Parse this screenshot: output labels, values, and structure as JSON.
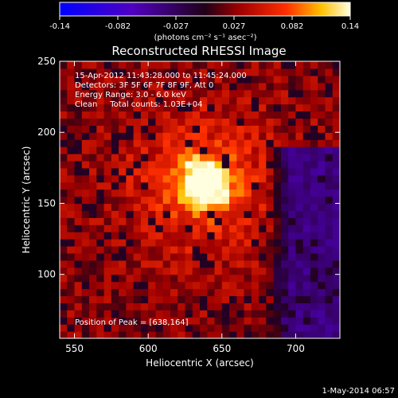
{
  "chart_data": {
    "type": "heatmap",
    "title": "Reconstructed RHESSI Image",
    "xlabel": "Heliocentric X (arcsec)",
    "ylabel": "Heliocentric Y (arcsec)",
    "xlim": [
      540,
      730
    ],
    "ylim": [
      55,
      250
    ],
    "xticks": [
      550,
      600,
      650,
      700
    ],
    "yticks": [
      100,
      150,
      200,
      250
    ],
    "grid": false,
    "colorbar": {
      "position": "top",
      "min": -0.14,
      "max": 0.14,
      "ticks": [
        "-0.14",
        "-0.082",
        "-0.027",
        "0.027",
        "0.082",
        "0.14"
      ],
      "unit_label": "(photons cm⁻² s⁻¹ asec⁻²)"
    },
    "annotations": [
      "15-Apr-2012 11:43:28.000 to 11:45:24.000",
      "Detectors: 3F 5F 6F 7F 8F 9F, Att 0",
      "Energy Range: 3.0 - 6.0 keV",
      "Clean     Total counts: 1.03E+04"
    ],
    "peak_label": "Position of Peak = [638,164]",
    "peak": {
      "x": 638,
      "y": 164,
      "value": 0.14
    },
    "background_level": 0.03,
    "negative_region": {
      "x_from": 680,
      "y_from": 55,
      "y_to": 190,
      "level": -0.04
    }
  },
  "footer": {
    "date": "1-May-2014 06:57"
  }
}
